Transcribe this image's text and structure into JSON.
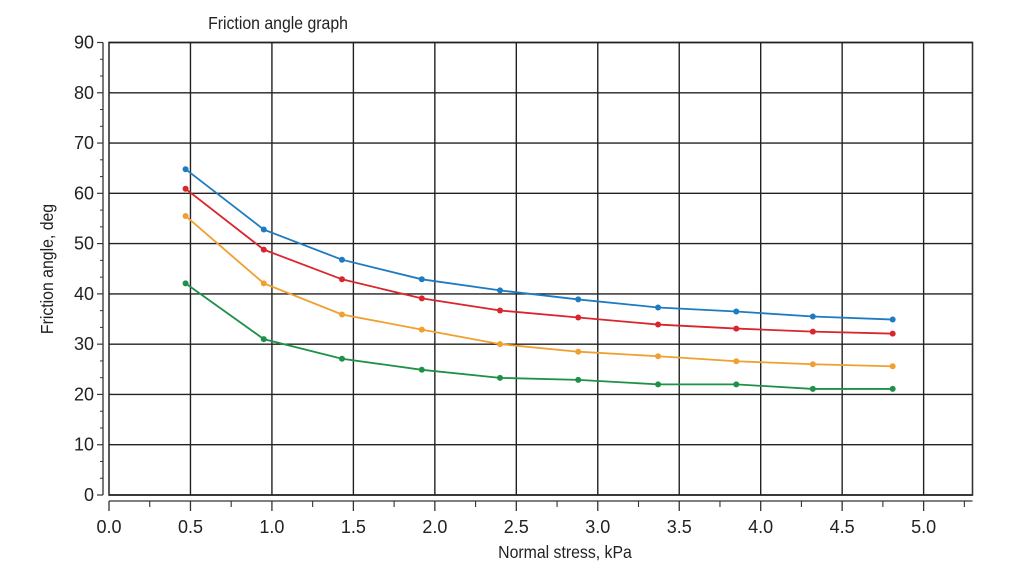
{
  "chart_data": {
    "type": "line",
    "title": "Friction angle graph",
    "xlabel": "Normal stress, kPa",
    "ylabel": "Friction angle, deg",
    "xlim": [
      0,
      5.3
    ],
    "ylim": [
      0,
      90
    ],
    "grid": true,
    "legend": "none",
    "x_ticks": [
      "0.0",
      "0.5",
      "1.0",
      "1.5",
      "2.0",
      "2.5",
      "3.0",
      "3.5",
      "4.0",
      "4.5",
      "5.0"
    ],
    "y_ticks": [
      "0",
      "10",
      "20",
      "30",
      "40",
      "50",
      "60",
      "70",
      "80",
      "90"
    ],
    "x": [
      0.47,
      0.95,
      1.43,
      1.92,
      2.4,
      2.88,
      3.37,
      3.85,
      4.32,
      4.81
    ],
    "series": [
      {
        "color": "#1f7bc0",
        "values": [
          64.8,
          52.8,
          46.8,
          42.9,
          40.7,
          38.9,
          37.3,
          36.5,
          35.5,
          34.9
        ]
      },
      {
        "color": "#d9262e",
        "values": [
          60.9,
          48.8,
          42.9,
          39.1,
          36.7,
          35.3,
          33.9,
          33.1,
          32.5,
          32.1
        ]
      },
      {
        "color": "#f0a030",
        "values": [
          55.5,
          42.1,
          35.9,
          32.9,
          30.0,
          28.5,
          27.6,
          26.6,
          26.0,
          25.6
        ]
      },
      {
        "color": "#1e9148",
        "values": [
          42.1,
          31.0,
          27.1,
          24.9,
          23.3,
          22.9,
          22.0,
          22.0,
          21.1,
          21.1
        ]
      }
    ]
  }
}
